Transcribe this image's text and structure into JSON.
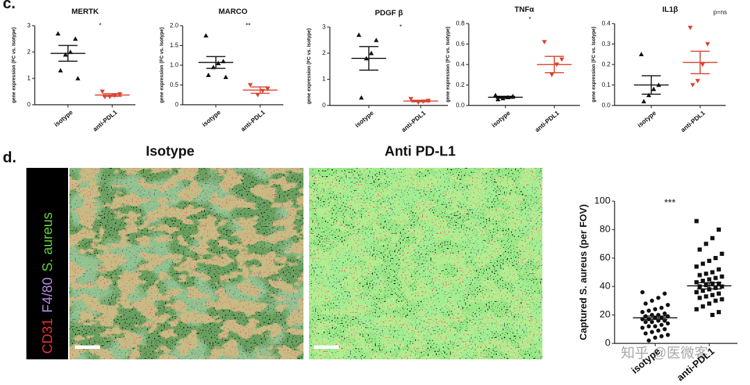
{
  "panel_labels": [
    "c.",
    "d."
  ],
  "image_titles": [
    "Isotype",
    "Anti PD-L1"
  ],
  "stain_labels": [
    {
      "text": "CD31",
      "color": "#e8302a"
    },
    {
      "text": "F4/80",
      "color": "#b48adf"
    },
    {
      "text": "S. aureus",
      "color": "#5fd03a"
    }
  ],
  "watermark": "知乎 @医微客",
  "chart_data": [
    {
      "type": "dotplot",
      "title": "MERTK",
      "ylabel": "gene expression (FC vs. Isotype)",
      "annotation": "*",
      "categories": [
        "isotype",
        "anti-PDL1"
      ],
      "ylim": [
        0,
        3
      ],
      "yticks": [
        0,
        1,
        2,
        3
      ],
      "groups": [
        {
          "marker": "triangle",
          "color": "#111111",
          "points": [
            2.7,
            2.5,
            2.0,
            1.9,
            1.3,
            1.0
          ],
          "mean": 1.95,
          "sem": 0.3
        },
        {
          "marker": "triangle-down",
          "color": "#d9432f",
          "points": [
            0.5,
            0.4,
            0.35,
            0.3,
            0.3
          ],
          "mean": 0.37,
          "sem": 0.05
        }
      ]
    },
    {
      "type": "dotplot",
      "title": "MARCO",
      "ylabel": "gene expression (FC vs. Isotype)",
      "annotation": "**",
      "categories": [
        "isotype",
        "anti-PDL1"
      ],
      "ylim": [
        0,
        2
      ],
      "yticks": [
        0,
        0.5,
        {
          "value": 1,
          "label": "1.0"
        },
        1.5,
        {
          "value": 2,
          "label": "2.0"
        }
      ],
      "groups": [
        {
          "marker": "triangle",
          "color": "#111111",
          "points": [
            1.75,
            1.1,
            1.05,
            0.95,
            0.75,
            0.7
          ],
          "mean": 1.07,
          "sem": 0.15
        },
        {
          "marker": "triangle-down",
          "color": "#d9432f",
          "points": [
            0.5,
            0.4,
            0.35,
            0.25
          ],
          "mean": 0.37,
          "sem": 0.08
        }
      ]
    },
    {
      "type": "dotplot",
      "title": "PDGF β",
      "ylabel": "gene expression (FC vs. Isotype)",
      "annotation": "*",
      "categories": [
        "isotype",
        "anti-PDL1"
      ],
      "ylim": [
        0,
        3
      ],
      "yticks": [
        0,
        1,
        2,
        3
      ],
      "groups": [
        {
          "marker": "triangle",
          "color": "#111111",
          "points": [
            2.7,
            2.5,
            2.0,
            1.8,
            0.3
          ],
          "mean": 1.8,
          "sem": 0.45
        },
        {
          "marker": "triangle-down",
          "color": "#d9432f",
          "points": [
            0.25,
            0.18,
            0.15,
            0.12
          ],
          "mean": 0.17,
          "sem": 0.03
        }
      ]
    },
    {
      "type": "dotplot",
      "title": "TNFα",
      "ylabel": "gene expression (FC vs. Isotype)",
      "annotation": "*",
      "categories": [
        "isotype",
        "anti-PDL1"
      ],
      "ylim": [
        0,
        0.8
      ],
      "yticks": [
        {
          "value": 0,
          "label": "0.0"
        },
        0.2,
        0.4,
        0.6,
        0.8
      ],
      "groups": [
        {
          "marker": "triangle",
          "color": "#111111",
          "points": [
            0.1,
            0.09,
            0.08,
            0.07,
            0.06
          ],
          "mean": 0.08,
          "sem": 0.01
        },
        {
          "marker": "triangle-down",
          "color": "#d9432f",
          "points": [
            0.62,
            0.45,
            0.4,
            0.3
          ],
          "mean": 0.4,
          "sem": 0.08
        }
      ]
    },
    {
      "type": "dotplot",
      "title": "IL1β",
      "ylabel": "gene expression (FC vs. Isotype)",
      "annotation": "p=ns",
      "categories": [
        "isotype",
        "anti-PDL1"
      ],
      "ylim": [
        0,
        0.4
      ],
      "yticks": [
        {
          "value": 0,
          "label": "0.0"
        },
        0.1,
        0.2,
        0.3,
        0.4
      ],
      "groups": [
        {
          "marker": "triangle",
          "color": "#111111",
          "points": [
            0.25,
            0.1,
            0.08,
            0.05,
            0.02
          ],
          "mean": 0.1,
          "sem": 0.045
        },
        {
          "marker": "triangle-down",
          "color": "#d9432f",
          "points": [
            0.38,
            0.3,
            0.2,
            0.12,
            0.1
          ],
          "mean": 0.21,
          "sem": 0.055
        }
      ]
    },
    {
      "type": "dotplot",
      "ylabel": "Captured S. aureus (per FOV)",
      "annotation": "***",
      "categories": [
        "isotype",
        "anti-PDL1"
      ],
      "ylim": [
        0,
        100
      ],
      "yticks": [
        0,
        20,
        40,
        60,
        80,
        100
      ],
      "groups": [
        {
          "marker": "circle",
          "color": "#111111",
          "points": [
            36,
            35,
            32,
            30,
            28,
            27,
            25,
            24,
            23,
            22,
            21,
            20,
            20,
            19,
            19,
            18,
            18,
            17,
            17,
            16,
            16,
            15,
            15,
            14,
            13,
            12,
            12,
            11,
            10,
            9,
            8,
            7,
            6,
            5,
            4,
            2
          ],
          "mean": 18,
          "sem": 1.2
        },
        {
          "marker": "square",
          "color": "#111111",
          "points": [
            86,
            80,
            74,
            70,
            66,
            63,
            60,
            58,
            56,
            54,
            52,
            50,
            49,
            48,
            47,
            46,
            45,
            44,
            43,
            42,
            42,
            41,
            40,
            40,
            39,
            38,
            37,
            36,
            35,
            34,
            33,
            32,
            31,
            30,
            28,
            26,
            24,
            22,
            20
          ],
          "mean": 40.5,
          "sem": 2.2
        }
      ]
    }
  ]
}
